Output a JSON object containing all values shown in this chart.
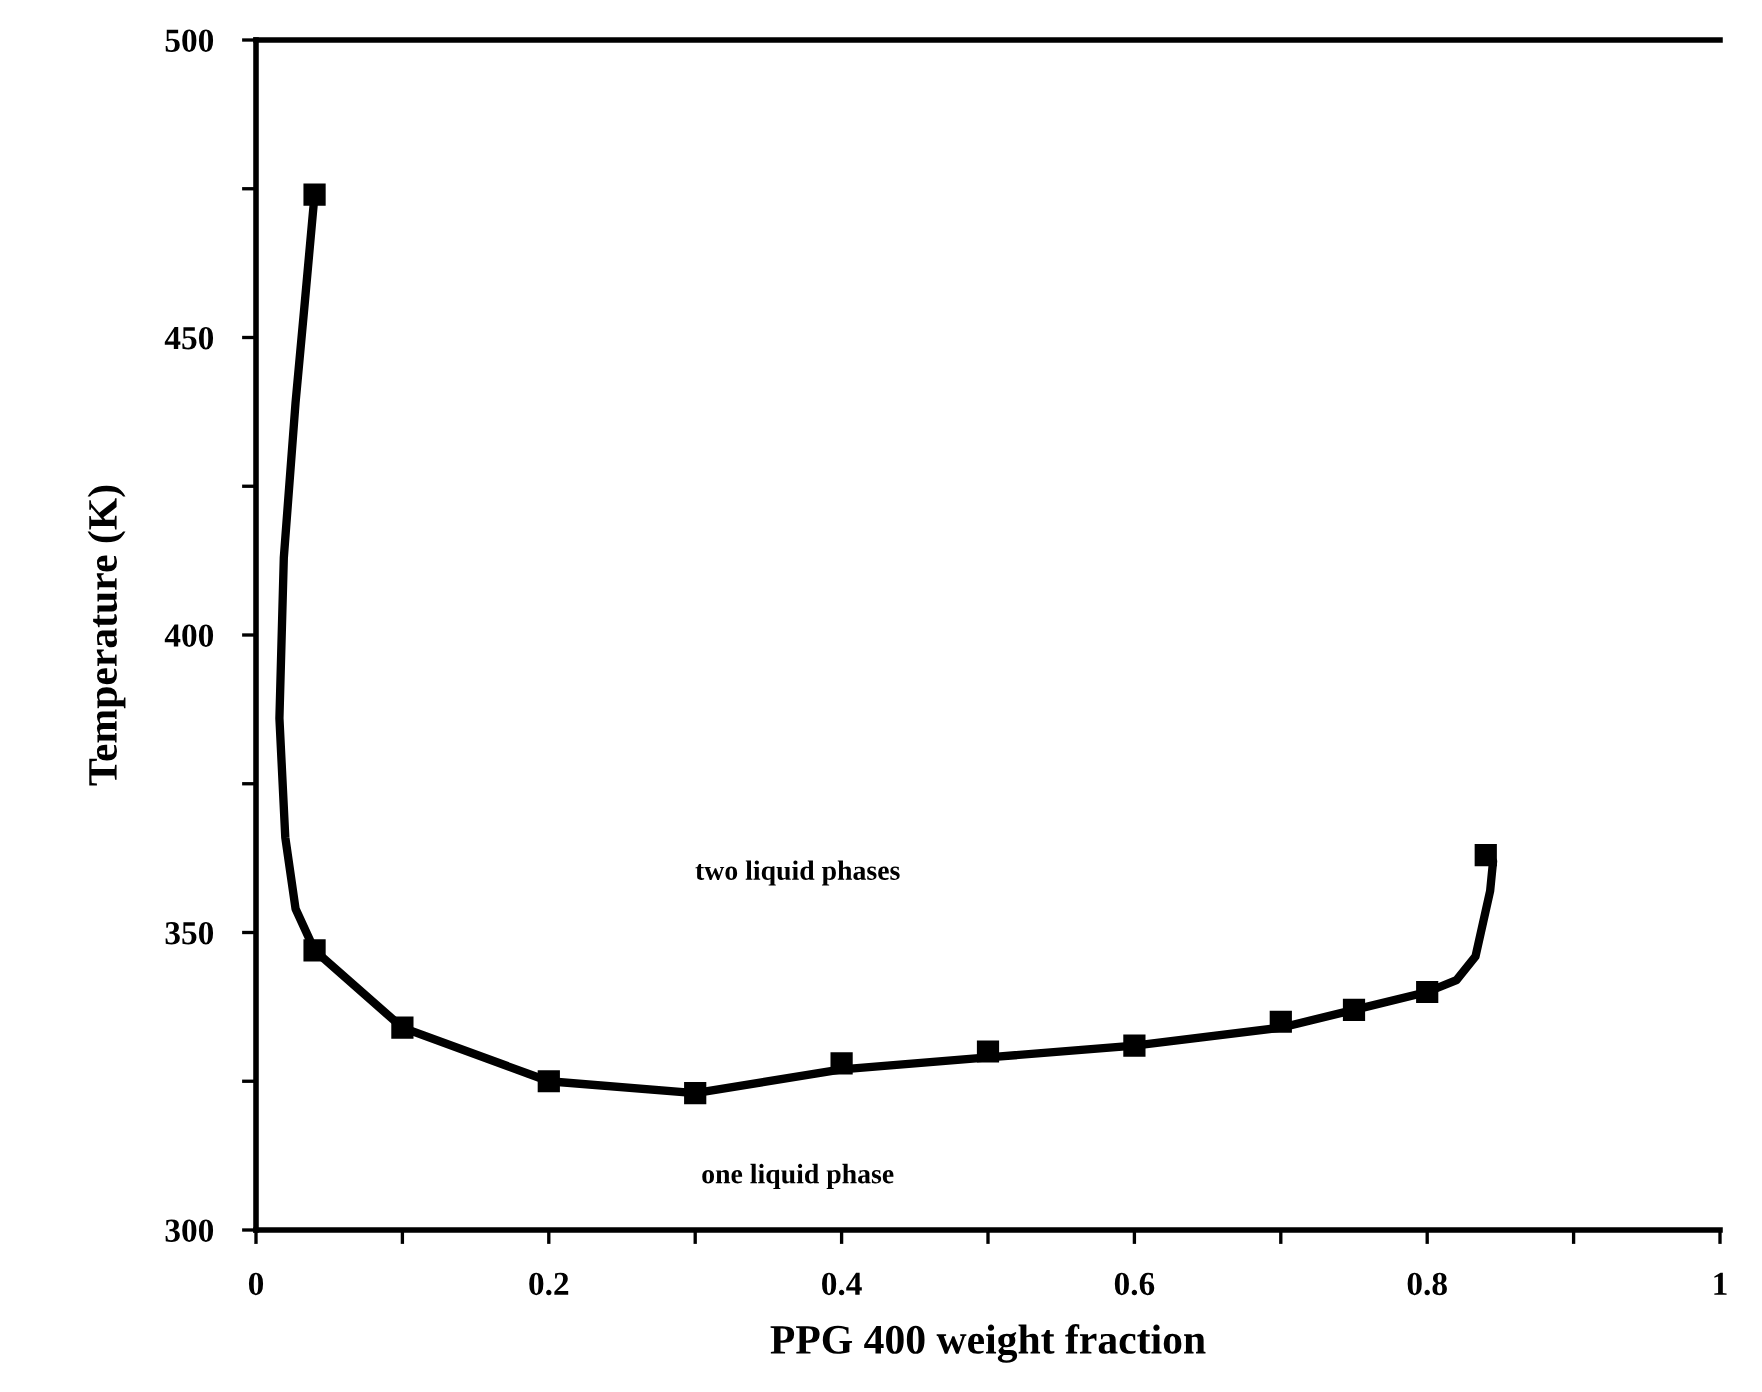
{
  "chart_data": {
    "type": "scatter",
    "xlabel": "PPG 400 weight fraction",
    "ylabel": "Temperature (K)",
    "series": [
      {
        "color": "#000000",
        "marker": "square",
        "x": [
          0.04,
          0.04,
          0.1,
          0.2,
          0.3,
          0.4,
          0.5,
          0.6,
          0.7,
          0.75,
          0.8,
          0.84
        ],
        "values": [
          474,
          347,
          334,
          325,
          323,
          328,
          330,
          331,
          335,
          337,
          340,
          363
        ]
      },
      {
        "type": "line",
        "color": "#000000",
        "line_style": "solid",
        "x": [
          0.04,
          0.033,
          0.027,
          0.019,
          0.016,
          0.02,
          0.027,
          0.04,
          0.1,
          0.2,
          0.3,
          0.4,
          0.5,
          0.6,
          0.7,
          0.75,
          0.8,
          0.82,
          0.833,
          0.843,
          0.845
        ],
        "values": [
          474,
          455,
          439,
          413,
          386,
          366,
          354,
          347,
          334,
          325,
          323,
          327,
          329,
          331,
          334,
          337,
          340,
          342,
          346,
          357,
          362
        ]
      }
    ],
    "annotations": [
      "two liquid phases",
      "one liquid phase"
    ],
    "xlim": [
      0,
      1
    ],
    "ylim": [
      300,
      500
    ],
    "xticks": [
      0,
      {
        "value": 0.1,
        "label": null
      },
      0.2,
      {
        "value": 0.3,
        "label": null
      },
      0.4,
      {
        "value": 0.5,
        "label": null
      },
      0.6,
      {
        "value": 0.7,
        "label": null
      },
      0.8,
      {
        "value": 0.9,
        "label": null
      },
      1
    ],
    "yticks": [
      300,
      {
        "value": 325,
        "label": null
      },
      350,
      {
        "value": 375,
        "label": null
      },
      400,
      {
        "value": 425,
        "label": null
      },
      450,
      {
        "value": 475,
        "label": null
      },
      500
    ],
    "grid": false,
    "legend": false
  }
}
